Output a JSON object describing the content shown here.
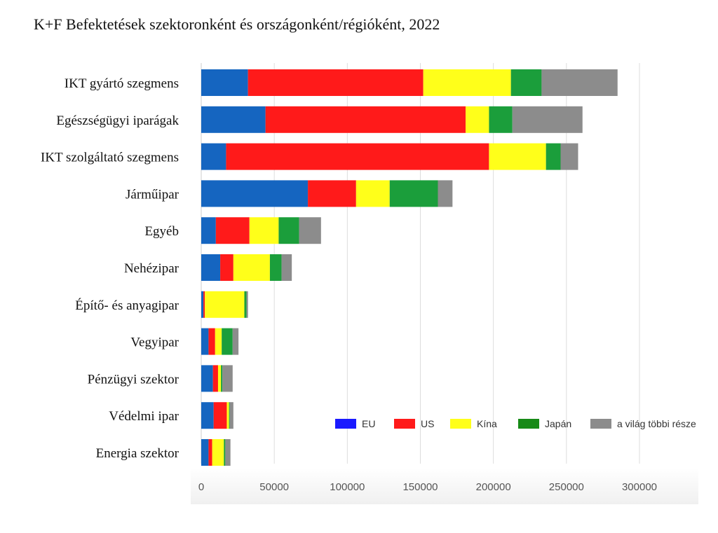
{
  "title": "K+F Befektetések szektoronként és országonként/régióként, 2022",
  "colors": {
    "EU": "#1565c0",
    "US": "#ff1a1a",
    "Kina": "#ffff1a",
    "Japan": "#1b9e3b",
    "rest": "#8c8c8c",
    "legend_EU": "#1a1aff",
    "legend_Japan": "#178a17",
    "grid": "#dddddd",
    "axis_band": "#f0f0f0"
  },
  "chart_data": {
    "type": "bar",
    "orientation": "horizontal",
    "stacked": true,
    "title": "K+F Befektetések szektoronként és országonként/régióként, 2022",
    "categories": [
      "IKT gyártó szegmens",
      "Egészségügyi iparágak",
      "IKT szolgáltató szegmens",
      "Járműipar",
      "Egyéb",
      "Nehézipar",
      "Építő- és anyagipar",
      "Vegyipar",
      "Pénzügyi szektor",
      "Védelmi ipar",
      "Energia szektor"
    ],
    "series": [
      {
        "name": "EU",
        "values": [
          32000,
          44000,
          17000,
          73000,
          10000,
          13000,
          1500,
          5000,
          8000,
          8500,
          5000
        ]
      },
      {
        "name": "US",
        "values": [
          120000,
          137000,
          180000,
          33000,
          23000,
          9000,
          1000,
          4500,
          3500,
          9000,
          2500
        ]
      },
      {
        "name": "Kína",
        "values": [
          60000,
          16000,
          39000,
          23000,
          20000,
          25000,
          27000,
          4500,
          2000,
          1500,
          8000
        ]
      },
      {
        "name": "Japán",
        "values": [
          21000,
          16000,
          10000,
          33000,
          14000,
          8000,
          1500,
          7500,
          1000,
          500,
          1000
        ]
      },
      {
        "name": "a világ többi része",
        "values": [
          52000,
          48000,
          12000,
          10000,
          15000,
          7000,
          1000,
          4000,
          7000,
          2500,
          3500
        ]
      }
    ],
    "xlim": [
      0,
      300000
    ],
    "xticks": [
      "0",
      "50000",
      "100000",
      "150000",
      "200000",
      "250000",
      "300000"
    ],
    "xtick_values": [
      0,
      50000,
      100000,
      150000,
      200000,
      250000,
      300000
    ],
    "grid": "vertical",
    "legend_position": "bottom-right"
  }
}
